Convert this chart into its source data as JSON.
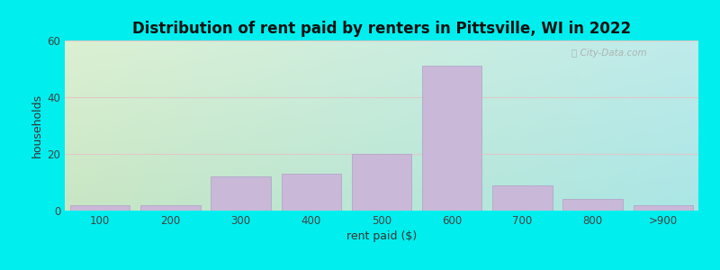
{
  "categories": [
    "100",
    "200",
    "300",
    "400",
    "500",
    "600",
    "700",
    "800",
    ">900"
  ],
  "values": [
    2,
    2,
    12,
    13,
    20,
    51,
    9,
    4,
    2
  ],
  "bar_color": "#c9b8d8",
  "bar_edgecolor": "#b0a0c8",
  "title": "Distribution of rent paid by renters in Pittsville, WI in 2022",
  "xlabel": "rent paid ($)",
  "ylabel": "households",
  "ylim": [
    0,
    60
  ],
  "yticks": [
    0,
    20,
    40,
    60
  ],
  "background_outer": "#00eeee",
  "grad_topleft": [
    220,
    240,
    210
  ],
  "grad_topright": [
    190,
    235,
    235
  ],
  "grad_bottomleft": [
    200,
    230,
    195
  ],
  "grad_bottomright": [
    170,
    230,
    230
  ],
  "title_fontsize": 12,
  "axis_fontsize": 9,
  "tick_fontsize": 8.5
}
